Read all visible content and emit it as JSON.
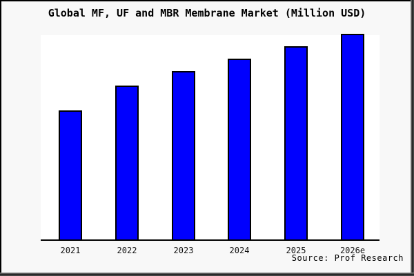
{
  "colors": {
    "frame_background": "#f8f8f8",
    "plot_background": "#ffffff",
    "bar_fill": "#0000fe",
    "bar_edge": "#000000",
    "axis_line": "#000000",
    "tick_text": "#111111",
    "title_text": "#000000"
  },
  "chart_data": {
    "type": "bar",
    "title": "Global MF, UF and MBR Membrane Market (Million USD)",
    "categories": [
      "2021",
      "2022",
      "2023",
      "2024",
      "2025",
      "2026e"
    ],
    "values": [
      63,
      75,
      82,
      88,
      94,
      100
    ],
    "value_basis": "relative bar heights as % of tallest (2026e) bar; chart shows no y-axis scale",
    "xlabel": "",
    "ylabel": "",
    "ylim": [
      0,
      100
    ],
    "grid": false,
    "legend": "none",
    "source": "Source: Prof Research"
  }
}
